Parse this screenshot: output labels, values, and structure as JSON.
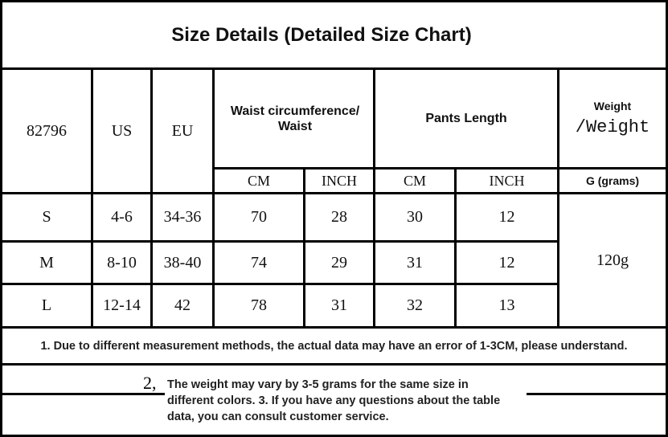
{
  "title": "Size Details (Detailed Size Chart)",
  "header": {
    "model": "82796",
    "us": "US",
    "eu": "EU",
    "waist": "Waist circumference/ Waist",
    "pants_length": "Pants Length",
    "weight_line1": "Weight",
    "weight_line2": "/Weight",
    "waist_cm": "CM",
    "waist_inch": "INCH",
    "length_cm": "CM",
    "length_inch": "INCH",
    "weight_unit": "G (grams)"
  },
  "rows": [
    {
      "size": "S",
      "us": "4-6",
      "eu": "34-36",
      "waist_cm": "70",
      "waist_inch": "28",
      "length_cm": "30",
      "length_inch": "12"
    },
    {
      "size": "M",
      "us": "8-10",
      "eu": "38-40",
      "waist_cm": "74",
      "waist_inch": "29",
      "length_cm": "31",
      "length_inch": "12"
    },
    {
      "size": "L",
      "us": "12-14",
      "eu": "42",
      "waist_cm": "78",
      "waist_inch": "31",
      "length_cm": "32",
      "length_inch": "13"
    }
  ],
  "weight_value": "120g",
  "notes": {
    "note1": "1. Due to different measurement methods, the actual data may have an error of 1-3CM, please understand.",
    "note2_prefix": "2,",
    "note2": "The weight may vary by 3-5 grams for the same size in different colors. 3. If you have any questions about the table data, you can consult customer service."
  }
}
